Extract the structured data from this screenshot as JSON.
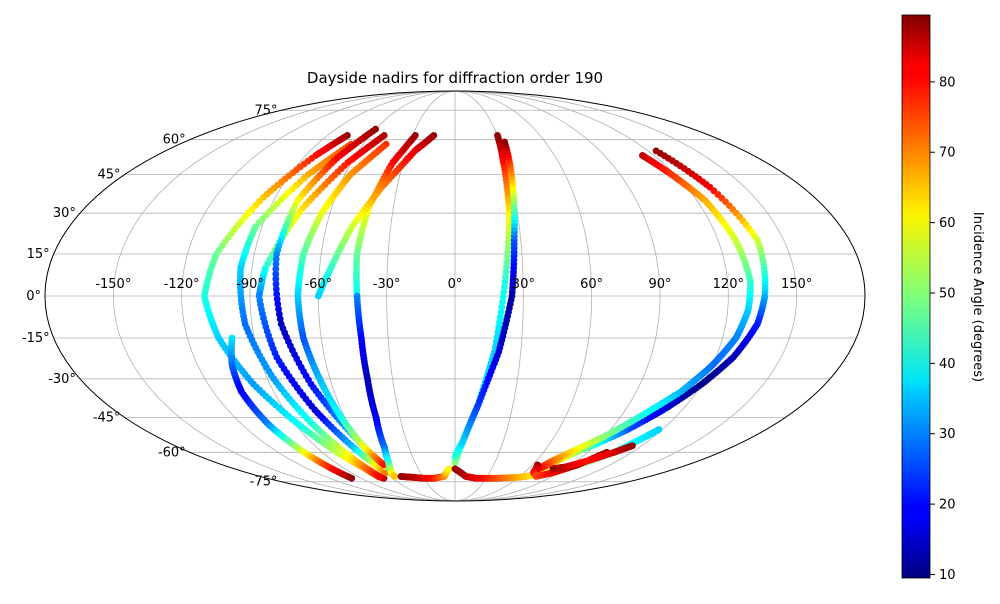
{
  "chart_data": {
    "type": "scatter",
    "projection": "mollweide",
    "title": "Dayside nadirs for diffraction order 190",
    "grid": true,
    "lon_ticks": [
      -150,
      -120,
      -90,
      -60,
      -30,
      0,
      30,
      60,
      90,
      120,
      150
    ],
    "lon_tick_labels": [
      "-150°",
      "-120°",
      "-90°",
      "-60°",
      "-30°",
      "0°",
      "30°",
      "60°",
      "90°",
      "120°",
      "150°"
    ],
    "lat_ticks": [
      75,
      60,
      45,
      30,
      15,
      0,
      -15,
      -30,
      -45,
      -60,
      -75
    ],
    "lat_tick_labels": [
      "75°",
      "60°",
      "45°",
      "30°",
      "15°",
      "0°",
      "-15°",
      "-30°",
      "-45°",
      "-60°",
      "-75°"
    ],
    "colorbar": {
      "label": "Incidence Angle (degrees)",
      "range": [
        9.5,
        89.5
      ],
      "ticks": [
        10,
        20,
        30,
        40,
        50,
        60,
        70,
        80
      ],
      "tick_labels": [
        "10",
        "20",
        "30",
        "40",
        "50",
        "60",
        "70",
        "80"
      ],
      "colormap": "jet",
      "placement": "right"
    },
    "tracks": [
      {
        "lon": [
          -76,
          -84,
          -96,
          -107,
          -110,
          -106,
          -98,
          -88,
          -80,
          -73,
          -71,
          -68
        ],
        "lat": [
          62,
          53,
          36,
          15,
          0,
          -15,
          -32,
          -48,
          -60,
          -68,
          -72,
          -73
        ],
        "inc": [
          88,
          78,
          64,
          48,
          42,
          36,
          32,
          40,
          54,
          68,
          76,
          84
        ]
      },
      {
        "lon": [
          -100,
          -104,
          -106,
          -105,
          -103,
          -101,
          -99
        ],
        "lat": [
          -15,
          -25,
          -35,
          -48,
          -57,
          -65,
          -73
        ],
        "inc": [
          38,
          28,
          18,
          30,
          50,
          72,
          88
        ]
      },
      {
        "lon": [
          -68,
          -80,
          -93,
          -95,
          -93,
          -87,
          -80,
          -74,
          -70
        ],
        "lat": [
          58,
          45,
          25,
          10,
          -10,
          -30,
          -48,
          -62,
          -72
        ],
        "inc": [
          74,
          66,
          48,
          36,
          28,
          32,
          42,
          60,
          80
        ]
      },
      {
        "lon": [
          -50,
          -62,
          -74,
          -84,
          -86,
          -82,
          -74,
          -66,
          -60
        ],
        "lat": [
          62,
          50,
          32,
          10,
          0,
          -22,
          -42,
          -58,
          -70
        ],
        "inc": [
          86,
          78,
          62,
          42,
          30,
          22,
          16,
          35,
          70
        ]
      },
      {
        "lon": [
          -60,
          -70,
          -78,
          -80,
          -77,
          -70,
          -62,
          -55
        ],
        "lat": [
          65,
          52,
          35,
          15,
          -10,
          -32,
          -50,
          -67
        ],
        "inc": [
          88,
          80,
          60,
          30,
          14,
          20,
          32,
          55
        ]
      },
      {
        "lon": [
          -45,
          -57,
          -64,
          -68,
          -69,
          -68,
          -65,
          -62,
          -59,
          -55
        ],
        "lat": [
          58,
          45,
          30,
          15,
          0,
          -15,
          -30,
          -45,
          -58,
          -66
        ],
        "inc": [
          76,
          68,
          58,
          46,
          36,
          26,
          34,
          40,
          58,
          78
        ]
      },
      {
        "lon": [
          -28,
          -36,
          -42,
          -44,
          -43
        ],
        "lat": [
          62,
          50,
          32,
          15,
          0
        ],
        "inc": [
          88,
          80,
          60,
          48,
          40
        ]
      },
      {
        "lon": [
          -43,
          -42,
          -42,
          -43,
          -46,
          -50,
          -55,
          -56
        ],
        "lat": [
          0,
          -15,
          -30,
          -45,
          -58,
          -65,
          -70,
          -72
        ],
        "inc": [
          30,
          20,
          14,
          18,
          28,
          42,
          56,
          64
        ]
      },
      {
        "lon": [
          -15,
          -25,
          -38,
          -48,
          -55,
          -60
        ],
        "lat": [
          62,
          55,
          40,
          25,
          10,
          0
        ],
        "inc": [
          88,
          82,
          70,
          56,
          44,
          36
        ]
      },
      {
        "lon": [
          -50,
          -40,
          -30,
          -20,
          -10,
          -5
        ],
        "lat": [
          -72,
          -72.5,
          -73,
          -73,
          -72,
          -68
        ],
        "inc": [
          88,
          86,
          82,
          78,
          70,
          60
        ]
      },
      {
        "lon": [
          0,
          5,
          12,
          18,
          22,
          26,
          28,
          30
        ],
        "lat": [
          -65,
          -55,
          -40,
          -20,
          5,
          30,
          50,
          62
        ],
        "inc": [
          50,
          44,
          38,
          36,
          42,
          60,
          78,
          88
        ]
      },
      {
        "lon": [
          0,
          5,
          12,
          20,
          25,
          27,
          30,
          33
        ],
        "lat": [
          -62,
          -55,
          -40,
          -20,
          0,
          20,
          40,
          59
        ],
        "inc": [
          44,
          36,
          24,
          16,
          12,
          26,
          60,
          88
        ]
      },
      {
        "lon": [
          0,
          10,
          20,
          30,
          40
        ],
        "lat": [
          -68,
          -72,
          -73,
          -73,
          -73
        ],
        "inc": [
          88,
          85,
          82,
          78,
          74
        ]
      },
      {
        "lon": [
          40,
          60,
          75,
          90,
          100,
          108,
          112,
          115,
          118
        ],
        "lat": [
          -73,
          -72.5,
          -71,
          -68,
          -64,
          -60,
          -56,
          -53,
          -50
        ],
        "inc": [
          74,
          66,
          60,
          54,
          48,
          44,
          40,
          38,
          36
        ]
      },
      {
        "lon": [
          125,
          132,
          138,
          136,
          134,
          128,
          120,
          110,
          100,
          90,
          80,
          72,
          68
        ],
        "lat": [
          55,
          40,
          20,
          0,
          -10,
          -22,
          -32,
          -42,
          -50,
          -56,
          -61,
          -66,
          -68
        ],
        "inc": [
          88,
          80,
          56,
          34,
          22,
          14,
          10,
          16,
          26,
          40,
          54,
          72,
          86
        ]
      },
      {
        "lon": [
          113,
          118,
          124,
          128,
          130,
          129,
          126,
          120,
          112,
          100,
          90,
          80,
          72,
          68
        ],
        "lat": [
          53,
          45,
          35,
          20,
          5,
          -5,
          -15,
          -25,
          -35,
          -45,
          -53,
          -59,
          -64,
          -68
        ],
        "inc": [
          84,
          76,
          66,
          56,
          44,
          36,
          30,
          28,
          34,
          42,
          50,
          60,
          70,
          80
        ]
      },
      {
        "lon": [
          64,
          68,
          75,
          85,
          95,
          103
        ],
        "lat": [
          -66,
          -70,
          -72,
          -70,
          -66,
          -60
        ],
        "inc": [
          88,
          80,
          74,
          80,
          86,
          88
        ]
      },
      {
        "lon": [
          80,
          88,
          98,
          108,
          114
        ],
        "lat": [
          -68,
          -67,
          -64,
          -60,
          -57
        ],
        "inc": [
          88,
          84,
          78,
          82,
          88
        ]
      }
    ]
  }
}
